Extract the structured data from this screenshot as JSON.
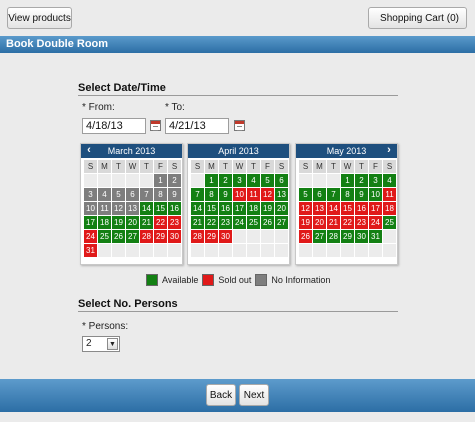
{
  "toolbar": {
    "view_products": "View products",
    "cart_label": "Shopping Cart (0)"
  },
  "header": {
    "title": "Book Double Room"
  },
  "date_section": {
    "title": "Select Date/Time",
    "from_label": "* From:",
    "to_label": "* To:",
    "from_value": "4/18/13",
    "to_value": "4/21/13"
  },
  "weekdays": [
    "S",
    "M",
    "T",
    "W",
    "T",
    "F",
    "S"
  ],
  "calendars": [
    {
      "month": "March 2013",
      "weeks": [
        [
          [
            "",
            ""
          ],
          [
            "",
            ""
          ],
          [
            "",
            ""
          ],
          [
            "",
            ""
          ],
          [
            "",
            ""
          ],
          [
            "1",
            "n"
          ],
          [
            "2",
            "n"
          ]
        ],
        [
          [
            "3",
            "n"
          ],
          [
            "4",
            "n"
          ],
          [
            "5",
            "n"
          ],
          [
            "6",
            "n"
          ],
          [
            "7",
            "n"
          ],
          [
            "8",
            "n"
          ],
          [
            "9",
            "n"
          ]
        ],
        [
          [
            "10",
            "n"
          ],
          [
            "11",
            "n"
          ],
          [
            "12",
            "n"
          ],
          [
            "13",
            "n"
          ],
          [
            "14",
            "a"
          ],
          [
            "15",
            "a"
          ],
          [
            "16",
            "a"
          ]
        ],
        [
          [
            "17",
            "a"
          ],
          [
            "18",
            "a"
          ],
          [
            "19",
            "a"
          ],
          [
            "20",
            "a"
          ],
          [
            "21",
            "a"
          ],
          [
            "22",
            "s"
          ],
          [
            "23",
            "s"
          ]
        ],
        [
          [
            "24",
            "s"
          ],
          [
            "25",
            "a"
          ],
          [
            "26",
            "a"
          ],
          [
            "27",
            "a"
          ],
          [
            "28",
            "s"
          ],
          [
            "29",
            "s"
          ],
          [
            "30",
            "s"
          ]
        ],
        [
          [
            "31",
            "s"
          ],
          [
            "",
            ""
          ],
          [
            "",
            ""
          ],
          [
            "",
            ""
          ],
          [
            "",
            ""
          ],
          [
            "",
            ""
          ],
          [
            "",
            ""
          ]
        ]
      ]
    },
    {
      "month": "April 2013",
      "weeks": [
        [
          [
            "",
            ""
          ],
          [
            "1",
            "a"
          ],
          [
            "2",
            "a"
          ],
          [
            "3",
            "a"
          ],
          [
            "4",
            "a"
          ],
          [
            "5",
            "a"
          ],
          [
            "6",
            "a"
          ]
        ],
        [
          [
            "7",
            "a"
          ],
          [
            "8",
            "a"
          ],
          [
            "9",
            "a"
          ],
          [
            "10",
            "s"
          ],
          [
            "11",
            "s"
          ],
          [
            "12",
            "s"
          ],
          [
            "13",
            "a"
          ]
        ],
        [
          [
            "14",
            "a"
          ],
          [
            "15",
            "a"
          ],
          [
            "16",
            "a"
          ],
          [
            "17",
            "a"
          ],
          [
            "18",
            "a"
          ],
          [
            "19",
            "a"
          ],
          [
            "20",
            "a"
          ]
        ],
        [
          [
            "21",
            "a"
          ],
          [
            "22",
            "a"
          ],
          [
            "23",
            "a"
          ],
          [
            "24",
            "a"
          ],
          [
            "25",
            "a"
          ],
          [
            "26",
            "a"
          ],
          [
            "27",
            "a"
          ]
        ],
        [
          [
            "28",
            "s"
          ],
          [
            "29",
            "s"
          ],
          [
            "30",
            "s"
          ],
          [
            "",
            ""
          ],
          [
            "",
            ""
          ],
          [
            "",
            ""
          ],
          [
            "",
            ""
          ]
        ],
        [
          [
            "",
            ""
          ],
          [
            "",
            ""
          ],
          [
            "",
            ""
          ],
          [
            "",
            ""
          ],
          [
            "",
            ""
          ],
          [
            "",
            ""
          ],
          [
            "",
            ""
          ]
        ]
      ]
    },
    {
      "month": "May 2013",
      "weeks": [
        [
          [
            "",
            ""
          ],
          [
            "",
            ""
          ],
          [
            "",
            ""
          ],
          [
            "1",
            "a"
          ],
          [
            "2",
            "a"
          ],
          [
            "3",
            "a"
          ],
          [
            "4",
            "a"
          ]
        ],
        [
          [
            "5",
            "a"
          ],
          [
            "6",
            "a"
          ],
          [
            "7",
            "a"
          ],
          [
            "8",
            "a"
          ],
          [
            "9",
            "a"
          ],
          [
            "10",
            "a"
          ],
          [
            "11",
            "s"
          ]
        ],
        [
          [
            "12",
            "s"
          ],
          [
            "13",
            "s"
          ],
          [
            "14",
            "s"
          ],
          [
            "15",
            "s"
          ],
          [
            "16",
            "s"
          ],
          [
            "17",
            "s"
          ],
          [
            "18",
            "s"
          ]
        ],
        [
          [
            "19",
            "s"
          ],
          [
            "20",
            "s"
          ],
          [
            "21",
            "s"
          ],
          [
            "22",
            "s"
          ],
          [
            "23",
            "s"
          ],
          [
            "24",
            "s"
          ],
          [
            "25",
            "a"
          ]
        ],
        [
          [
            "26",
            "s"
          ],
          [
            "27",
            "a"
          ],
          [
            "28",
            "a"
          ],
          [
            "29",
            "a"
          ],
          [
            "30",
            "a"
          ],
          [
            "31",
            "a"
          ],
          [
            "",
            ""
          ]
        ],
        [
          [
            "",
            ""
          ],
          [
            "",
            ""
          ],
          [
            "",
            ""
          ],
          [
            "",
            ""
          ],
          [
            "",
            ""
          ],
          [
            "",
            ""
          ],
          [
            "",
            ""
          ]
        ]
      ]
    }
  ],
  "legend": [
    {
      "label": "Available",
      "color": "#138013"
    },
    {
      "label": "Sold out",
      "color": "#e01919"
    },
    {
      "label": "No Information",
      "color": "#7e7e7e"
    }
  ],
  "persons_section": {
    "title": "Select No. Persons",
    "label": "* Persons:",
    "value": "2"
  },
  "footer": {
    "back_label": "Back",
    "next_label": "Next"
  }
}
